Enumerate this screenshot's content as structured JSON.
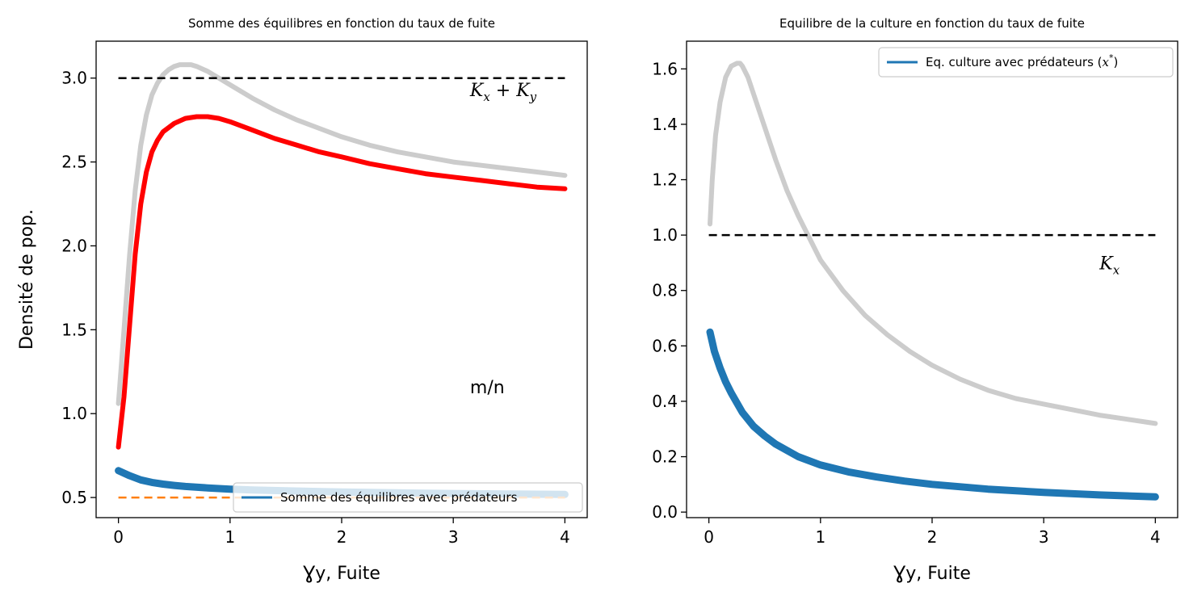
{
  "chart_data": [
    {
      "type": "line",
      "title": "Somme des équilibres en fonction du taux de fuite",
      "xlabel": "Ɣy, Fuite",
      "ylabel": "Densité de pop.",
      "xlim": [
        -0.2,
        4.2
      ],
      "ylim": [
        0.38,
        3.22
      ],
      "xticks": [
        0,
        1,
        2,
        3,
        4
      ],
      "yticks": [
        0.5,
        1.0,
        1.5,
        2.0,
        2.5,
        3.0
      ],
      "xtick_labels": [
        "0",
        "1",
        "2",
        "3",
        "4"
      ],
      "ytick_labels": [
        "0.5",
        "1.0",
        "1.5",
        "2.0",
        "2.5",
        "3.0"
      ],
      "grid": false,
      "legend": {
        "position": "lower-right",
        "entries": [
          {
            "label": "Somme des équilibres avec prédateurs",
            "color": "#1f77b4"
          }
        ]
      },
      "annotations": [
        {
          "text_main": "K",
          "sub1": "x",
          "mid": " + K",
          "sub2": "y",
          "x": 3.15,
          "y": 2.93
        },
        {
          "text": "m/n",
          "x": 3.15,
          "y": 1.16
        }
      ],
      "series": [
        {
          "color": "#cccccc",
          "style": "thick",
          "x": [
            0.0,
            0.05,
            0.1,
            0.15,
            0.2,
            0.25,
            0.3,
            0.35,
            0.4,
            0.45,
            0.5,
            0.55,
            0.6,
            0.65,
            0.7,
            0.8,
            0.9,
            1.0,
            1.2,
            1.4,
            1.6,
            1.8,
            2.0,
            2.25,
            2.5,
            2.75,
            3.0,
            3.25,
            3.5,
            3.75,
            4.0
          ],
          "y": [
            1.06,
            1.5,
            1.95,
            2.33,
            2.6,
            2.78,
            2.9,
            2.97,
            3.02,
            3.05,
            3.07,
            3.08,
            3.08,
            3.08,
            3.07,
            3.04,
            3.0,
            2.96,
            2.88,
            2.81,
            2.75,
            2.7,
            2.65,
            2.6,
            2.56,
            2.53,
            2.5,
            2.48,
            2.46,
            2.44,
            2.42
          ]
        },
        {
          "color": "#ff0000",
          "style": "thick",
          "x": [
            0.0,
            0.05,
            0.1,
            0.15,
            0.2,
            0.25,
            0.3,
            0.35,
            0.4,
            0.5,
            0.6,
            0.7,
            0.75,
            0.8,
            0.9,
            1.0,
            1.2,
            1.4,
            1.6,
            1.8,
            2.0,
            2.25,
            2.5,
            2.75,
            3.0,
            3.25,
            3.5,
            3.75,
            4.0
          ],
          "y": [
            0.8,
            1.1,
            1.53,
            1.95,
            2.25,
            2.44,
            2.56,
            2.63,
            2.68,
            2.73,
            2.76,
            2.77,
            2.77,
            2.77,
            2.76,
            2.74,
            2.69,
            2.64,
            2.6,
            2.56,
            2.53,
            2.49,
            2.46,
            2.43,
            2.41,
            2.39,
            2.37,
            2.35,
            2.34
          ]
        },
        {
          "name": "Somme des équilibres avec prédateurs",
          "color": "#1f77b4",
          "style": "thick",
          "x": [
            0.0,
            0.1,
            0.2,
            0.3,
            0.4,
            0.5,
            0.6,
            0.8,
            1.0,
            1.2,
            1.5,
            2.0,
            2.5,
            3.0,
            3.5,
            4.0
          ],
          "y": [
            0.66,
            0.63,
            0.605,
            0.59,
            0.58,
            0.572,
            0.566,
            0.557,
            0.55,
            0.545,
            0.54,
            0.533,
            0.528,
            0.524,
            0.521,
            0.518
          ]
        },
        {
          "color": "#000000",
          "style": "dashed",
          "x": [
            0.0,
            4.0
          ],
          "y": [
            3.0,
            3.0
          ]
        },
        {
          "color": "#ff7f0e",
          "style": "dashed",
          "x": [
            0.0,
            4.0
          ],
          "y": [
            0.5,
            0.5
          ]
        }
      ]
    },
    {
      "type": "line",
      "title": "Equilibre de la culture en fonction du taux de fuite",
      "xlabel": "Ɣy, Fuite",
      "ylabel": "",
      "xlim": [
        -0.2,
        4.2
      ],
      "ylim": [
        -0.02,
        1.7
      ],
      "xticks": [
        0,
        1,
        2,
        3,
        4
      ],
      "yticks": [
        0.0,
        0.2,
        0.4,
        0.6,
        0.8,
        1.0,
        1.2,
        1.4,
        1.6
      ],
      "xtick_labels": [
        "0",
        "1",
        "2",
        "3",
        "4"
      ],
      "ytick_labels": [
        "0.0",
        "0.2",
        "0.4",
        "0.6",
        "0.8",
        "1.0",
        "1.2",
        "1.4",
        "1.6"
      ],
      "grid": false,
      "legend": {
        "position": "upper-right",
        "entries": [
          {
            "label": "Eq. culture avec prédateurs (",
            "math": "x",
            "sup": "*",
            "tail": ")",
            "color": "#1f77b4"
          }
        ]
      },
      "annotations": [
        {
          "text_main": "K",
          "sub1": "x",
          "x": 3.5,
          "y": 0.9
        }
      ],
      "series": [
        {
          "color": "#cccccc",
          "style": "thick",
          "x": [
            0.01,
            0.03,
            0.06,
            0.1,
            0.15,
            0.2,
            0.25,
            0.28,
            0.3,
            0.35,
            0.4,
            0.5,
            0.6,
            0.7,
            0.8,
            1.0,
            1.2,
            1.4,
            1.6,
            1.8,
            2.0,
            2.25,
            2.5,
            2.75,
            3.0,
            3.25,
            3.5,
            3.75,
            4.0
          ],
          "y": [
            1.04,
            1.2,
            1.36,
            1.48,
            1.57,
            1.61,
            1.62,
            1.62,
            1.61,
            1.57,
            1.51,
            1.39,
            1.27,
            1.16,
            1.07,
            0.91,
            0.8,
            0.71,
            0.64,
            0.58,
            0.53,
            0.48,
            0.44,
            0.41,
            0.39,
            0.37,
            0.35,
            0.335,
            0.32
          ]
        },
        {
          "name": "Eq. culture avec prédateurs (x*)",
          "color": "#1f77b4",
          "style": "thick",
          "x": [
            0.01,
            0.05,
            0.1,
            0.15,
            0.2,
            0.3,
            0.4,
            0.5,
            0.6,
            0.8,
            1.0,
            1.25,
            1.5,
            1.75,
            2.0,
            2.5,
            3.0,
            3.5,
            4.0
          ],
          "y": [
            0.65,
            0.58,
            0.52,
            0.47,
            0.43,
            0.36,
            0.31,
            0.275,
            0.245,
            0.2,
            0.17,
            0.145,
            0.127,
            0.112,
            0.1,
            0.083,
            0.071,
            0.062,
            0.055
          ]
        },
        {
          "color": "#000000",
          "style": "dashed",
          "x": [
            0.0,
            4.0
          ],
          "y": [
            1.0,
            1.0
          ]
        }
      ]
    }
  ]
}
